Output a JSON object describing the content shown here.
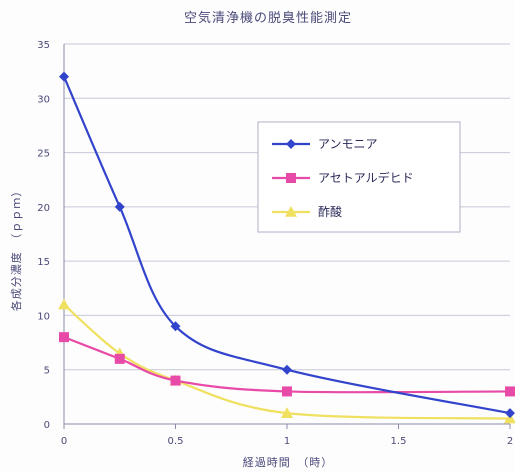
{
  "chart_data": {
    "type": "line",
    "title": "空気清浄機の脱臭性能測定",
    "xlabel": "経過時間　（時）",
    "ylabel": "各成分濃度　（ｐｐｍ）",
    "xlim": [
      0,
      2
    ],
    "ylim": [
      0,
      35
    ],
    "x_ticks": [
      0,
      0.5,
      1,
      1.5,
      2
    ],
    "x_tick_labels": [
      "0",
      "0.5",
      "1",
      "1.5",
      "2"
    ],
    "y_ticks": [
      0,
      5,
      10,
      15,
      20,
      25,
      30,
      35
    ],
    "y_tick_labels": [
      "0",
      "5",
      "10",
      "15",
      "20",
      "25",
      "30",
      "35"
    ],
    "grid": "horizontal",
    "legend_position": "right",
    "series": [
      {
        "name": "アンモニア",
        "color": "#3344cc",
        "marker": "diamond",
        "x": [
          0,
          0.25,
          0.5,
          1,
          2
        ],
        "y": [
          32,
          20,
          9,
          5,
          1
        ]
      },
      {
        "name": "アセトアルデヒド",
        "color": "#e84aa8",
        "marker": "square",
        "x": [
          0,
          0.25,
          0.5,
          1,
          2
        ],
        "y": [
          8,
          6,
          4,
          3,
          3
        ]
      },
      {
        "name": "酢酸",
        "color": "#f0e060",
        "marker": "triangle",
        "x": [
          0,
          0.25,
          0.5,
          1,
          2
        ],
        "y": [
          11,
          6.5,
          4,
          1,
          0.5
        ]
      }
    ]
  }
}
